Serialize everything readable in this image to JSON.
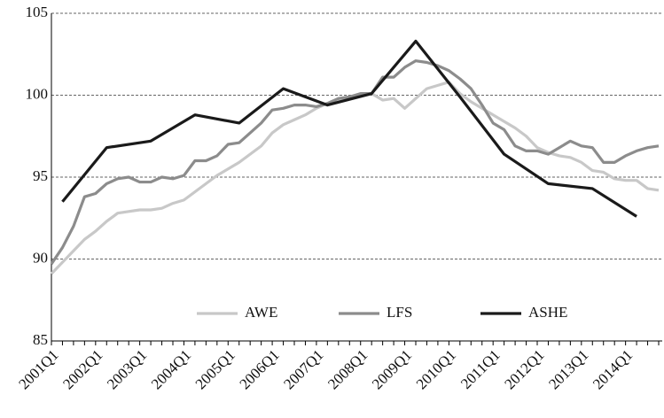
{
  "chart_data": {
    "type": "line",
    "x": [
      2001,
      2001.25,
      2001.5,
      2001.75,
      2002,
      2002.25,
      2002.5,
      2002.75,
      2003,
      2003.25,
      2003.5,
      2003.75,
      2004,
      2004.25,
      2004.5,
      2004.75,
      2005,
      2005.25,
      2005.5,
      2005.75,
      2006,
      2006.25,
      2006.5,
      2006.75,
      2007,
      2007.25,
      2007.5,
      2007.75,
      2008,
      2008.25,
      2008.5,
      2008.75,
      2009,
      2009.25,
      2009.5,
      2009.75,
      2010,
      2010.25,
      2010.5,
      2010.75,
      2011,
      2011.25,
      2011.5,
      2011.75,
      2012,
      2012.25,
      2012.5,
      2012.75,
      2013,
      2013.25,
      2013.5,
      2013.75,
      2014,
      2014.25,
      2014.5,
      2014.75
    ],
    "xlim": [
      2001,
      2014.75
    ],
    "xticks": [
      {
        "value": 2001,
        "label": "2001Q1"
      },
      {
        "value": 2002,
        "label": "2002Q1"
      },
      {
        "value": 2003,
        "label": "2003Q1"
      },
      {
        "value": 2004,
        "label": "2004Q1"
      },
      {
        "value": 2005,
        "label": "2005Q1"
      },
      {
        "value": 2006,
        "label": "2006Q1"
      },
      {
        "value": 2007,
        "label": "2007Q1"
      },
      {
        "value": 2008,
        "label": "2008Q1"
      },
      {
        "value": 2009,
        "label": "2009Q1"
      },
      {
        "value": 2010,
        "label": "2010Q1"
      },
      {
        "value": 2011,
        "label": "2011Q1"
      },
      {
        "value": 2012,
        "label": "2012Q1"
      },
      {
        "value": 2013,
        "label": "2013Q1"
      },
      {
        "value": 2014,
        "label": "2014Q1"
      }
    ],
    "ylim": [
      85,
      105
    ],
    "yticks": [
      85,
      90,
      95,
      100,
      105
    ],
    "grid": true,
    "series": [
      {
        "name": "AWE",
        "color": "#c8c8c8",
        "values": [
          89.1,
          89.8,
          90.5,
          91.2,
          91.7,
          92.3,
          92.8,
          92.9,
          93.0,
          93.0,
          93.1,
          93.4,
          93.6,
          94.1,
          94.6,
          95.1,
          95.5,
          95.9,
          96.4,
          96.9,
          97.7,
          98.2,
          98.5,
          98.8,
          99.2,
          99.5,
          99.7,
          99.9,
          100.0,
          100.1,
          99.7,
          99.8,
          99.2,
          99.8,
          100.4,
          100.6,
          100.8,
          100.1,
          99.6,
          99.2,
          98.8,
          98.4,
          98.0,
          97.5,
          96.8,
          96.5,
          96.3,
          96.2,
          95.9,
          95.4,
          95.3,
          94.9,
          94.8,
          94.8,
          94.3,
          94.2
        ]
      },
      {
        "name": "LFS",
        "color": "#8c8c8c",
        "values": [
          89.7,
          90.7,
          92.0,
          93.8,
          94.0,
          94.6,
          94.9,
          95.0,
          94.7,
          94.7,
          95.0,
          94.9,
          95.1,
          96.0,
          96.0,
          96.3,
          97.0,
          97.1,
          97.7,
          98.3,
          99.1,
          99.2,
          99.4,
          99.4,
          99.3,
          99.5,
          99.8,
          99.9,
          100.1,
          100.1,
          101.1,
          101.1,
          101.7,
          102.1,
          102.0,
          101.8,
          101.5,
          101.0,
          100.4,
          99.4,
          98.3,
          97.9,
          96.9,
          96.6,
          96.6,
          96.4,
          96.8,
          97.2,
          96.9,
          96.8,
          95.9,
          95.9,
          96.3,
          96.6,
          96.8,
          96.9
        ]
      },
      {
        "name": "ASHE",
        "color": "#1a1a1a",
        "x": [
          2001.25,
          2002.25,
          2003.25,
          2004.25,
          2005.25,
          2006.25,
          2007.25,
          2008.25,
          2009.25,
          2010.25,
          2011.25,
          2012.25,
          2013.25,
          2014.25
        ],
        "values": [
          93.5,
          96.8,
          97.2,
          98.8,
          98.3,
          100.4,
          99.4,
          100.1,
          103.3,
          99.9,
          96.4,
          94.6,
          94.3,
          92.6
        ]
      }
    ]
  }
}
